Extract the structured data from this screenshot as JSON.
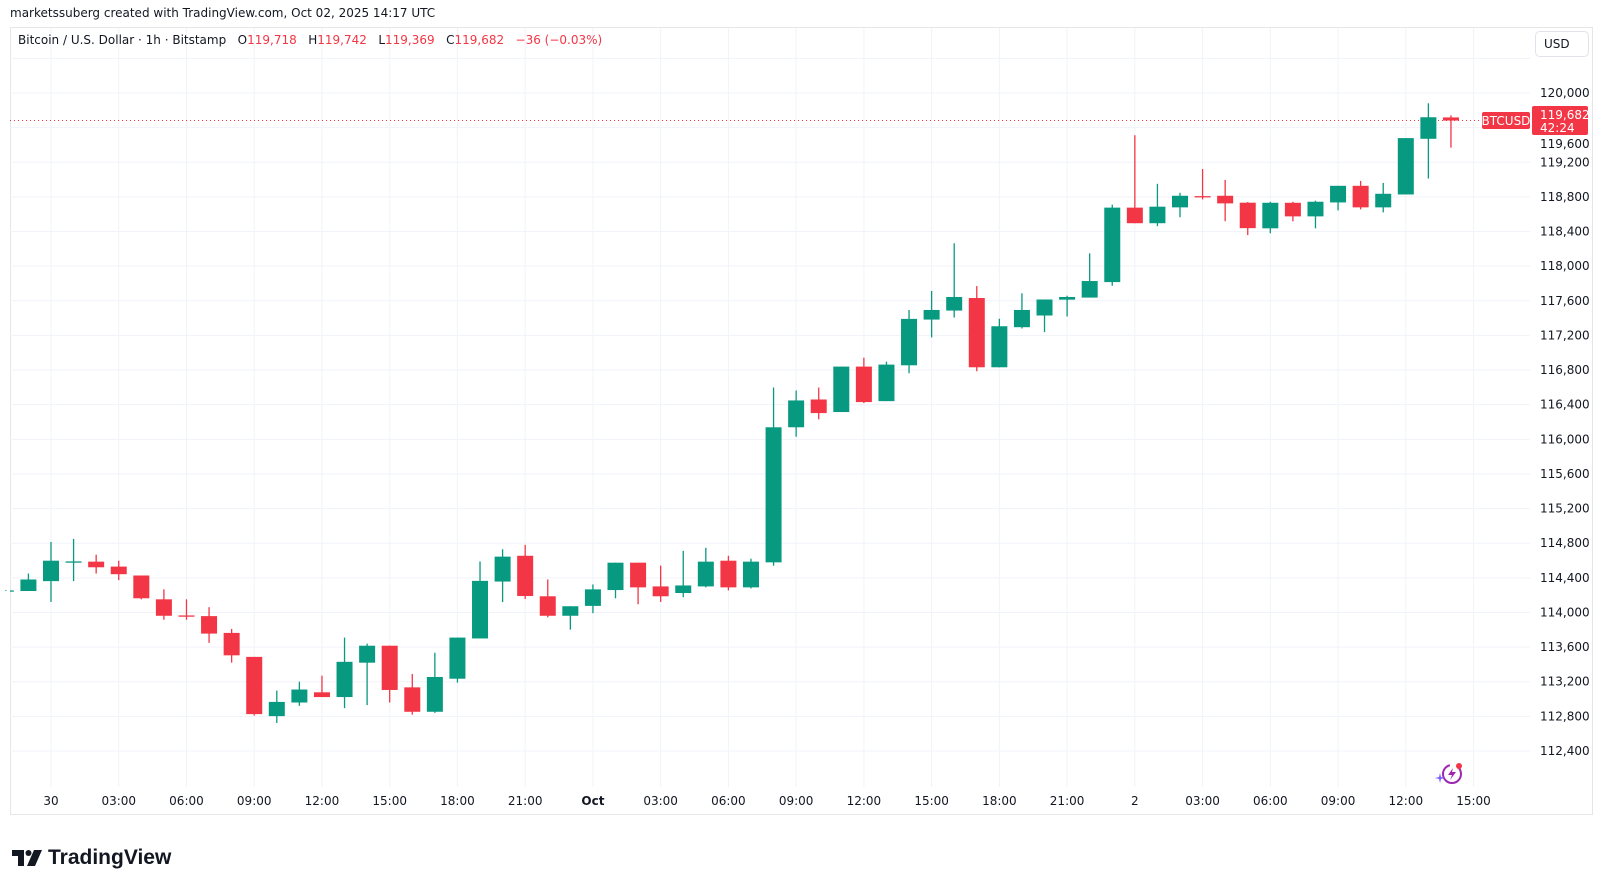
{
  "attribution": "marketssuberg created with TradingView.com, Oct 02, 2025 14:17 UTC",
  "legend": {
    "symbol": "Bitcoin / U.S. Dollar · 1h · Bitstamp",
    "o_label": "O",
    "o_value": "119,718",
    "h_label": "H",
    "h_value": "119,742",
    "l_label": "L",
    "l_value": "119,369",
    "c_label": "C",
    "c_value": "119,682",
    "change": "−36 (−0.03%)"
  },
  "currency_button": "USD",
  "last_price": {
    "symbol": "BTCUSD",
    "price": "119,682",
    "countdown": "42:24",
    "value": 119682
  },
  "logo_text": "TradingView",
  "colors": {
    "up": "#089981",
    "down": "#f23645",
    "grid": "#f0f3fa",
    "ai_icon": "#9c27b0"
  },
  "icons": {
    "logo": "tradingview-logo-icon",
    "assistant": "lightning-assistant-icon"
  },
  "chart_data": {
    "type": "candlestick",
    "interval": "1h",
    "grid": true,
    "ylim": [
      112400,
      120000
    ],
    "y_ticks": [
      "112,400",
      "112,800",
      "113,200",
      "113,600",
      "114,000",
      "114,400",
      "114,800",
      "115,200",
      "115,600",
      "116,000",
      "116,400",
      "116,800",
      "117,200",
      "117,600",
      "118,000",
      "118,400",
      "118,800",
      "119,200",
      "119,600",
      "120,000"
    ],
    "x_ticks": [
      {
        "label": "30",
        "t": "2025-09-30T00:00",
        "bold": false
      },
      {
        "label": "03:00",
        "t": "2025-09-30T03:00",
        "bold": false
      },
      {
        "label": "06:00",
        "t": "2025-09-30T06:00",
        "bold": false
      },
      {
        "label": "09:00",
        "t": "2025-09-30T09:00",
        "bold": false
      },
      {
        "label": "12:00",
        "t": "2025-09-30T12:00",
        "bold": false
      },
      {
        "label": "15:00",
        "t": "2025-09-30T15:00",
        "bold": false
      },
      {
        "label": "18:00",
        "t": "2025-09-30T18:00",
        "bold": false
      },
      {
        "label": "21:00",
        "t": "2025-09-30T21:00",
        "bold": false
      },
      {
        "label": "Oct",
        "t": "2025-10-01T00:00",
        "bold": true
      },
      {
        "label": "03:00",
        "t": "2025-10-01T03:00",
        "bold": false
      },
      {
        "label": "06:00",
        "t": "2025-10-01T06:00",
        "bold": false
      },
      {
        "label": "09:00",
        "t": "2025-10-01T09:00",
        "bold": false
      },
      {
        "label": "12:00",
        "t": "2025-10-01T12:00",
        "bold": false
      },
      {
        "label": "15:00",
        "t": "2025-10-01T15:00",
        "bold": false
      },
      {
        "label": "18:00",
        "t": "2025-10-01T18:00",
        "bold": false
      },
      {
        "label": "21:00",
        "t": "2025-10-01T21:00",
        "bold": false
      },
      {
        "label": "2",
        "t": "2025-10-02T00:00",
        "bold": false
      },
      {
        "label": "03:00",
        "t": "2025-10-02T03:00",
        "bold": false
      },
      {
        "label": "06:00",
        "t": "2025-10-02T06:00",
        "bold": false
      },
      {
        "label": "09:00",
        "t": "2025-10-02T09:00",
        "bold": false
      },
      {
        "label": "12:00",
        "t": "2025-10-02T12:00",
        "bold": false
      },
      {
        "label": "15:00",
        "t": "2025-10-02T15:00",
        "bold": false
      }
    ],
    "candles": [
      {
        "t": "2025-09-29T22:00",
        "o": 114250,
        "h": 114260,
        "l": 114250,
        "c": 114255
      },
      {
        "t": "2025-09-29T23:00",
        "o": 114248,
        "h": 114450,
        "l": 114248,
        "c": 114381
      },
      {
        "t": "2025-09-30T00:00",
        "o": 114362,
        "h": 114815,
        "l": 114122,
        "c": 114598
      },
      {
        "t": "2025-09-30T01:00",
        "o": 114583,
        "h": 114850,
        "l": 114362,
        "c": 114590
      },
      {
        "t": "2025-09-30T02:00",
        "o": 114587,
        "h": 114667,
        "l": 114450,
        "c": 114522
      },
      {
        "t": "2025-09-30T03:00",
        "o": 114530,
        "h": 114598,
        "l": 114373,
        "c": 114442
      },
      {
        "t": "2025-09-30T04:00",
        "o": 114427,
        "h": 114427,
        "l": 114152,
        "c": 114164
      },
      {
        "t": "2025-09-30T05:00",
        "o": 114152,
        "h": 114267,
        "l": 113916,
        "c": 113962
      },
      {
        "t": "2025-09-30T06:00",
        "o": 113966,
        "h": 114152,
        "l": 113916,
        "c": 113958
      },
      {
        "t": "2025-09-30T07:00",
        "o": 113958,
        "h": 114061,
        "l": 113649,
        "c": 113756
      },
      {
        "t": "2025-09-30T08:00",
        "o": 113764,
        "h": 113810,
        "l": 113421,
        "c": 113505
      },
      {
        "t": "2025-09-30T09:00",
        "o": 113487,
        "h": 113487,
        "l": 112810,
        "c": 112826
      },
      {
        "t": "2025-09-30T10:00",
        "o": 112803,
        "h": 113098,
        "l": 112724,
        "c": 112967
      },
      {
        "t": "2025-09-30T11:00",
        "o": 112960,
        "h": 113200,
        "l": 112922,
        "c": 113110
      },
      {
        "t": "2025-09-30T12:00",
        "o": 113078,
        "h": 113270,
        "l": 113023,
        "c": 113023
      },
      {
        "t": "2025-09-30T13:00",
        "o": 113023,
        "h": 113710,
        "l": 112895,
        "c": 113430
      },
      {
        "t": "2025-09-30T14:00",
        "o": 113420,
        "h": 113640,
        "l": 112930,
        "c": 113616
      },
      {
        "t": "2025-09-30T15:00",
        "o": 113616,
        "h": 113616,
        "l": 112960,
        "c": 113105
      },
      {
        "t": "2025-09-30T16:00",
        "o": 113135,
        "h": 113290,
        "l": 112820,
        "c": 112853
      },
      {
        "t": "2025-09-30T17:00",
        "o": 112853,
        "h": 113535,
        "l": 112840,
        "c": 113255
      },
      {
        "t": "2025-09-30T18:00",
        "o": 113235,
        "h": 113710,
        "l": 113190,
        "c": 113710
      },
      {
        "t": "2025-09-30T19:00",
        "o": 113700,
        "h": 114590,
        "l": 113700,
        "c": 114365
      },
      {
        "t": "2025-09-30T20:00",
        "o": 114357,
        "h": 114730,
        "l": 114120,
        "c": 114645
      },
      {
        "t": "2025-09-30T21:00",
        "o": 114655,
        "h": 114781,
        "l": 114156,
        "c": 114190
      },
      {
        "t": "2025-09-30T22:00",
        "o": 114187,
        "h": 114381,
        "l": 113943,
        "c": 113962
      },
      {
        "t": "2025-09-30T23:00",
        "o": 113962,
        "h": 114072,
        "l": 113802,
        "c": 114072
      },
      {
        "t": "2025-10-01T00:00",
        "o": 114076,
        "h": 114324,
        "l": 113992,
        "c": 114267
      },
      {
        "t": "2025-10-01T01:00",
        "o": 114259,
        "h": 114575,
        "l": 114164,
        "c": 114575
      },
      {
        "t": "2025-10-01T02:00",
        "o": 114575,
        "h": 114575,
        "l": 114095,
        "c": 114290
      },
      {
        "t": "2025-10-01T03:00",
        "o": 114301,
        "h": 114541,
        "l": 114122,
        "c": 114187
      },
      {
        "t": "2025-10-01T04:00",
        "o": 114225,
        "h": 114712,
        "l": 114175,
        "c": 114312
      },
      {
        "t": "2025-10-01T05:00",
        "o": 114301,
        "h": 114747,
        "l": 114290,
        "c": 114587
      },
      {
        "t": "2025-10-01T06:00",
        "o": 114598,
        "h": 114655,
        "l": 114255,
        "c": 114290
      },
      {
        "t": "2025-10-01T07:00",
        "o": 114290,
        "h": 114621,
        "l": 114278,
        "c": 114587
      },
      {
        "t": "2025-10-01T08:00",
        "o": 114579,
        "h": 116598,
        "l": 114540,
        "c": 116139
      },
      {
        "t": "2025-10-01T09:00",
        "o": 116139,
        "h": 116564,
        "l": 116030,
        "c": 116449
      },
      {
        "t": "2025-10-01T10:00",
        "o": 116460,
        "h": 116598,
        "l": 116231,
        "c": 116303
      },
      {
        "t": "2025-10-01T11:00",
        "o": 116315,
        "h": 116840,
        "l": 116315,
        "c": 116840
      },
      {
        "t": "2025-10-01T12:00",
        "o": 116840,
        "h": 116943,
        "l": 116418,
        "c": 116430
      },
      {
        "t": "2025-10-01T13:00",
        "o": 116441,
        "h": 116897,
        "l": 116441,
        "c": 116863
      },
      {
        "t": "2025-10-01T14:00",
        "o": 116855,
        "h": 117494,
        "l": 116763,
        "c": 117391
      },
      {
        "t": "2025-10-01T15:00",
        "o": 117383,
        "h": 117713,
        "l": 117177,
        "c": 117494
      },
      {
        "t": "2025-10-01T16:00",
        "o": 117487,
        "h": 118264,
        "l": 117406,
        "c": 117644
      },
      {
        "t": "2025-10-01T17:00",
        "o": 117632,
        "h": 117770,
        "l": 116786,
        "c": 116832
      },
      {
        "t": "2025-10-01T18:00",
        "o": 116832,
        "h": 117393,
        "l": 116832,
        "c": 117306
      },
      {
        "t": "2025-10-01T19:00",
        "o": 117295,
        "h": 117687,
        "l": 117280,
        "c": 117494
      },
      {
        "t": "2025-10-01T20:00",
        "o": 117430,
        "h": 117615,
        "l": 117238,
        "c": 117615
      },
      {
        "t": "2025-10-01T21:00",
        "o": 117613,
        "h": 117659,
        "l": 117419,
        "c": 117644
      },
      {
        "t": "2025-10-01T22:00",
        "o": 117637,
        "h": 118148,
        "l": 117637,
        "c": 117828
      },
      {
        "t": "2025-10-01T23:00",
        "o": 117816,
        "h": 118710,
        "l": 117774,
        "c": 118676
      },
      {
        "t": "2025-10-02T00:00",
        "o": 118676,
        "h": 119512,
        "l": 118496,
        "c": 118496
      },
      {
        "t": "2025-10-02T01:00",
        "o": 118496,
        "h": 118951,
        "l": 118462,
        "c": 118687
      },
      {
        "t": "2025-10-02T02:00",
        "o": 118679,
        "h": 118847,
        "l": 118565,
        "c": 118813
      },
      {
        "t": "2025-10-02T03:00",
        "o": 118809,
        "h": 119122,
        "l": 118771,
        "c": 118801
      },
      {
        "t": "2025-10-02T04:00",
        "o": 118813,
        "h": 118996,
        "l": 118519,
        "c": 118725
      },
      {
        "t": "2025-10-02T05:00",
        "o": 118733,
        "h": 118740,
        "l": 118359,
        "c": 118439
      },
      {
        "t": "2025-10-02T06:00",
        "o": 118437,
        "h": 118744,
        "l": 118380,
        "c": 118732
      },
      {
        "t": "2025-10-02T07:00",
        "o": 118732,
        "h": 118744,
        "l": 118518,
        "c": 118575
      },
      {
        "t": "2025-10-02T08:00",
        "o": 118575,
        "h": 118756,
        "l": 118437,
        "c": 118744
      },
      {
        "t": "2025-10-02T09:00",
        "o": 118736,
        "h": 118928,
        "l": 118644,
        "c": 118928
      },
      {
        "t": "2025-10-02T10:00",
        "o": 118928,
        "h": 118985,
        "l": 118656,
        "c": 118679
      },
      {
        "t": "2025-10-02T11:00",
        "o": 118679,
        "h": 118962,
        "l": 118621,
        "c": 118836
      },
      {
        "t": "2025-10-02T12:00",
        "o": 118828,
        "h": 119479,
        "l": 118828,
        "c": 119479
      },
      {
        "t": "2025-10-02T13:00",
        "o": 119471,
        "h": 119881,
        "l": 119012,
        "c": 119720
      },
      {
        "t": "2025-10-02T14:00",
        "o": 119718,
        "h": 119742,
        "l": 119369,
        "c": 119682
      }
    ]
  }
}
